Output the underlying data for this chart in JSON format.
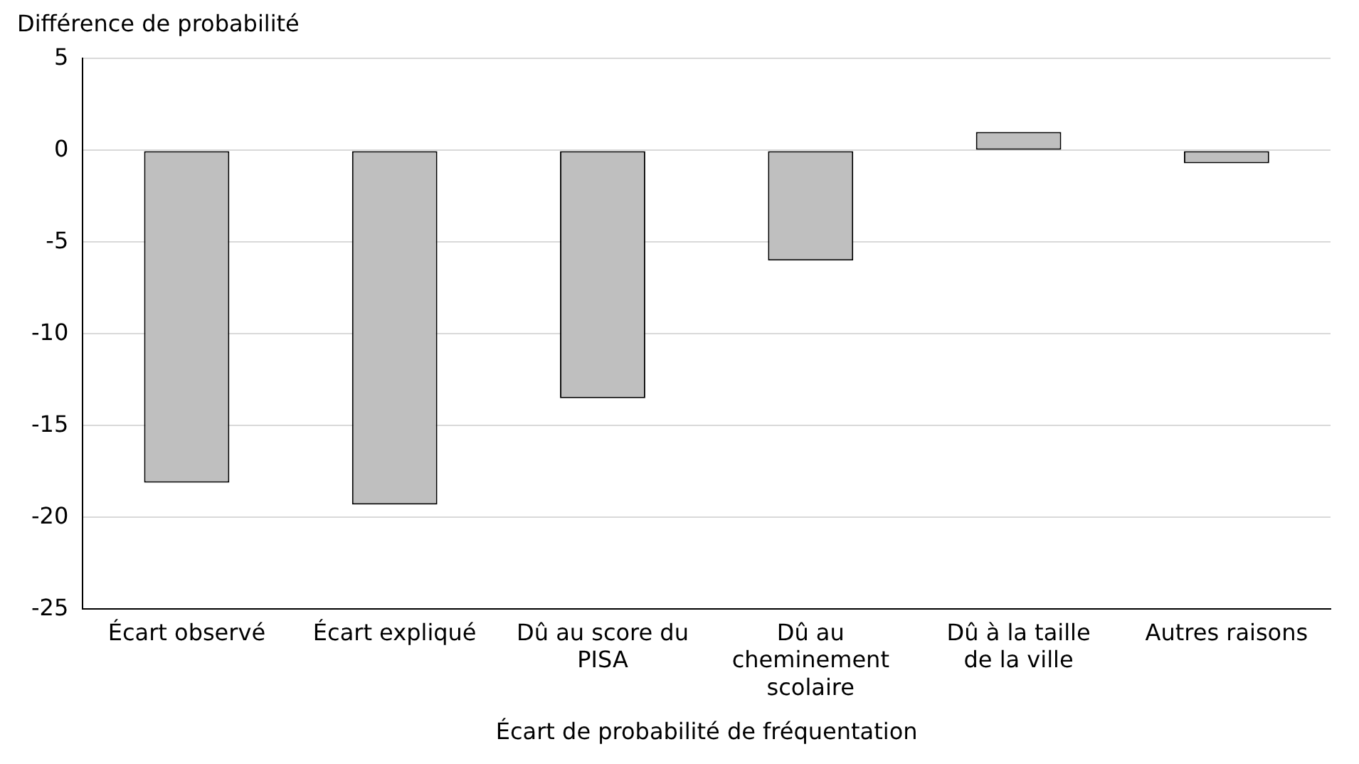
{
  "chart_data": {
    "type": "bar",
    "ylabel": "Différence de probabilité",
    "xlabel": "Écart de probabilité de fréquentation",
    "categories": [
      "Écart observé",
      "Écart expliqué",
      "Dû au score du PISA",
      "Dû au cheminement scolaire",
      "Dû à la taille de la ville",
      "Autres raisons"
    ],
    "values": [
      -18.1,
      -19.3,
      -13.5,
      -6.0,
      1.0,
      -0.7
    ],
    "color": "#bfbfbf",
    "ylim": [
      -25,
      5
    ],
    "yticks": [
      -25,
      -20,
      -15,
      -10,
      -5,
      0,
      5
    ],
    "grid": "y",
    "legend": false
  }
}
